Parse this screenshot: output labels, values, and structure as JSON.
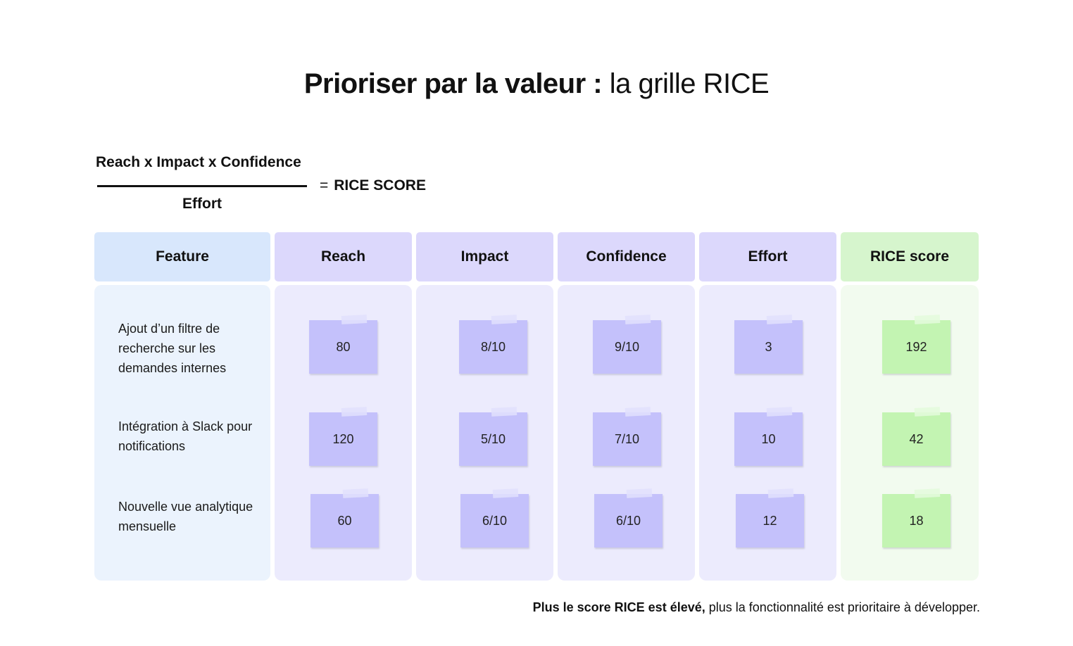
{
  "title": {
    "bold": "Prioriser par la valeur :",
    "light": "la grille RICE"
  },
  "formula": {
    "numerator": "Reach x Impact x Confidence",
    "denominator": "Effort",
    "equals": "=",
    "result": "RICE SCORE"
  },
  "columns": {
    "feature": "Feature",
    "reach": "Reach",
    "impact": "Impact",
    "confidence": "Confidence",
    "effort": "Effort",
    "score": "RICE score"
  },
  "rows": [
    {
      "feature": "Ajout d’un filtre de recherche sur les demandes internes",
      "reach": "80",
      "impact": "8/10",
      "confidence": "9/10",
      "effort": "3",
      "score": "192"
    },
    {
      "feature": "Intégration à Slack pour notifications",
      "reach": "120",
      "impact": "5/10",
      "confidence": "7/10",
      "effort": "10",
      "score": "42"
    },
    {
      "feature": "Nouvelle vue analytique mensuelle",
      "reach": "60",
      "impact": "6/10",
      "confidence": "6/10",
      "effort": "12",
      "score": "18"
    }
  ],
  "footer": {
    "bold": "Plus le score RICE est élevé,",
    "rest": "plus la fonctionnalité est prioritaire à développer."
  },
  "colors": {
    "feature_header": "#d8e7fc",
    "feature_body": "#ebf3fd",
    "metric_header": "#dcd8fc",
    "metric_body": "#ecebfd",
    "metric_note": "#c4c1fb",
    "score_header": "#d6f5cd",
    "score_body": "#f2fbef",
    "score_note": "#c3f4b2"
  }
}
